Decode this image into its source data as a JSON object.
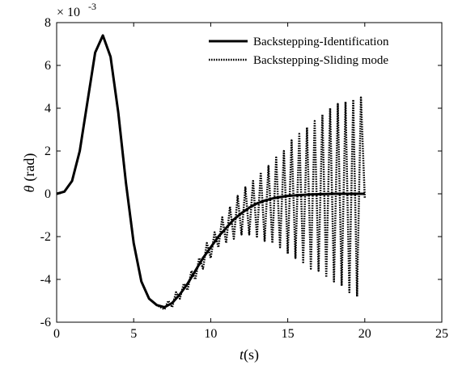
{
  "chart_data": {
    "type": "line",
    "title": "",
    "xlabel_var": "t",
    "xlabel_unit": "(s)",
    "ylabel_var": "θ",
    "ylabel_unit": "(rad)",
    "y_exponent_base": "× 10",
    "y_exponent": "-3",
    "xlim": [
      0,
      25
    ],
    "ylim": [
      -6,
      8
    ],
    "x_ticks": [
      "0",
      "5",
      "10",
      "15",
      "20",
      "25"
    ],
    "y_ticks": [
      "-6",
      "-4",
      "-2",
      "0",
      "2",
      "4",
      "6",
      "8"
    ],
    "grid": false,
    "legend_position": "top-right",
    "series": [
      {
        "name": "Backstepping-Identification",
        "style": "solid",
        "color": "#000000",
        "x": [
          0,
          0.5,
          1,
          1.5,
          2,
          2.5,
          3,
          3.5,
          4,
          4.5,
          5,
          5.5,
          6,
          6.5,
          7,
          7.5,
          8,
          8.5,
          9,
          9.5,
          10,
          10.5,
          11,
          11.5,
          12,
          12.5,
          13,
          13.5,
          14,
          14.5,
          15,
          15.5,
          16,
          16.5,
          17,
          17.5,
          18,
          18.5,
          19,
          19.5,
          20
        ],
        "y": [
          0,
          0.1,
          0.6,
          2.0,
          4.3,
          6.6,
          7.4,
          6.4,
          3.8,
          0.5,
          -2.3,
          -4.1,
          -4.9,
          -5.2,
          -5.3,
          -5.1,
          -4.7,
          -4.2,
          -3.6,
          -3.0,
          -2.5,
          -2.0,
          -1.6,
          -1.2,
          -0.9,
          -0.65,
          -0.45,
          -0.32,
          -0.22,
          -0.15,
          -0.1,
          -0.07,
          -0.05,
          -0.03,
          -0.02,
          -0.01,
          0,
          0,
          0,
          0,
          0
        ]
      },
      {
        "name": "Backstepping-Sliding mode",
        "style": "dotted",
        "color": "#000000",
        "x": [
          0,
          0.5,
          1,
          1.5,
          2,
          2.5,
          3,
          3.5,
          4,
          4.5,
          5,
          5.5,
          6,
          6.5,
          7,
          7.25,
          7.5,
          7.75,
          8,
          8.25,
          8.5,
          8.75,
          9,
          9.25,
          9.5,
          9.75,
          10,
          10.25,
          10.5,
          10.75,
          11,
          11.25,
          11.5,
          11.75,
          12,
          12.25,
          12.5,
          12.75,
          13,
          13.25,
          13.5,
          13.75,
          14,
          14.25,
          14.5,
          14.75,
          15,
          15.25,
          15.5,
          15.75,
          16,
          16.25,
          16.5,
          16.75,
          17,
          17.25,
          17.5,
          17.75,
          18,
          18.25,
          18.5,
          18.75,
          19,
          19.25,
          19.5,
          19.75,
          20
        ],
        "y": [
          0,
          0.1,
          0.6,
          2.0,
          4.3,
          6.6,
          7.4,
          6.4,
          3.8,
          0.5,
          -2.3,
          -4.1,
          -4.9,
          -5.2,
          -5.4,
          -5.0,
          -5.3,
          -4.6,
          -4.9,
          -4.2,
          -4.5,
          -3.6,
          -4.0,
          -3.0,
          -3.5,
          -2.3,
          -3.0,
          -1.8,
          -2.5,
          -1.1,
          -2.3,
          -0.6,
          -2.1,
          -0.1,
          -1.9,
          0.3,
          -1.9,
          0.6,
          -2.0,
          1.0,
          -2.2,
          1.3,
          -2.3,
          1.7,
          -2.5,
          2.0,
          -2.8,
          2.5,
          -3.0,
          2.8,
          -3.2,
          3.1,
          -3.5,
          3.4,
          -3.6,
          3.7,
          -3.9,
          4.0,
          -4.1,
          4.2,
          -4.3,
          4.3,
          -4.6,
          4.4,
          -4.8,
          4.5,
          -0.2
        ]
      }
    ]
  }
}
